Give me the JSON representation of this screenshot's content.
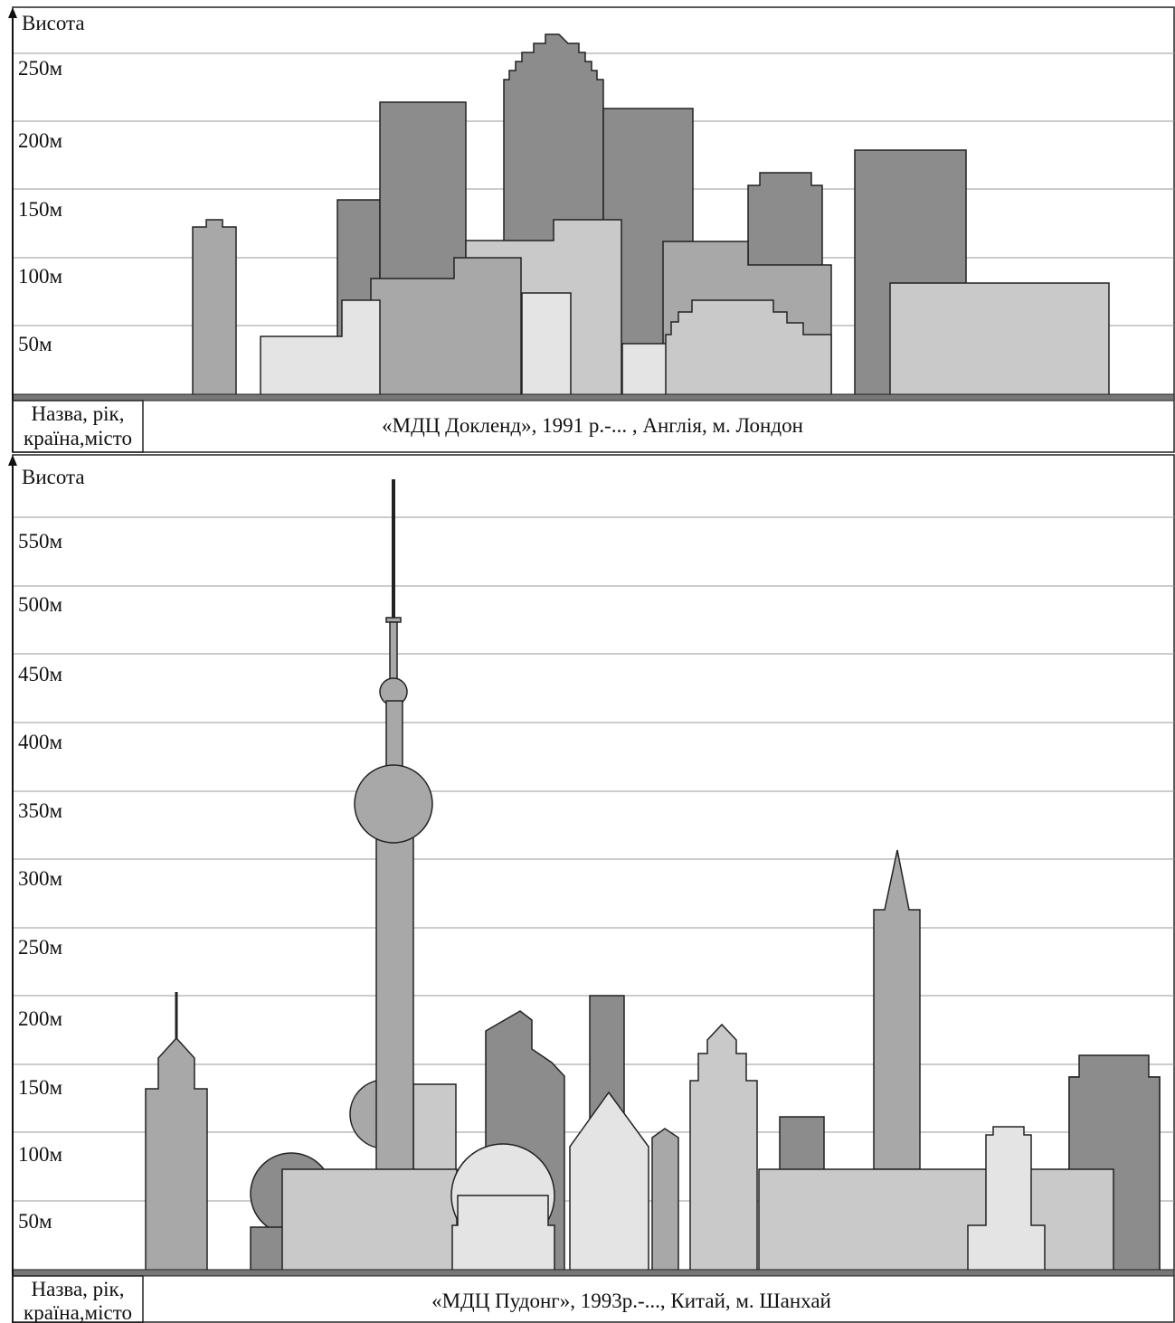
{
  "panels": [
    {
      "axis_label": "Висота",
      "tick_labels": [
        "250м",
        "200м",
        "150м",
        "100м",
        "50м"
      ],
      "name_label": [
        "Назва, рік,",
        "країна,місто"
      ],
      "caption": "«МДЦ Докленд», 1991 р.-... , Англія, м. Лондон"
    },
    {
      "axis_label": "Висота",
      "tick_labels": [
        "550м",
        "500м",
        "450м",
        "400м",
        "350м",
        "300м",
        "250м",
        "200м",
        "150м",
        "100м",
        "50м"
      ],
      "name_label": [
        "Назва, рік,",
        "країна,місто"
      ],
      "caption": "«МДЦ Пудонг», 1993р.-..., Китай, м. Шанхай"
    }
  ]
}
